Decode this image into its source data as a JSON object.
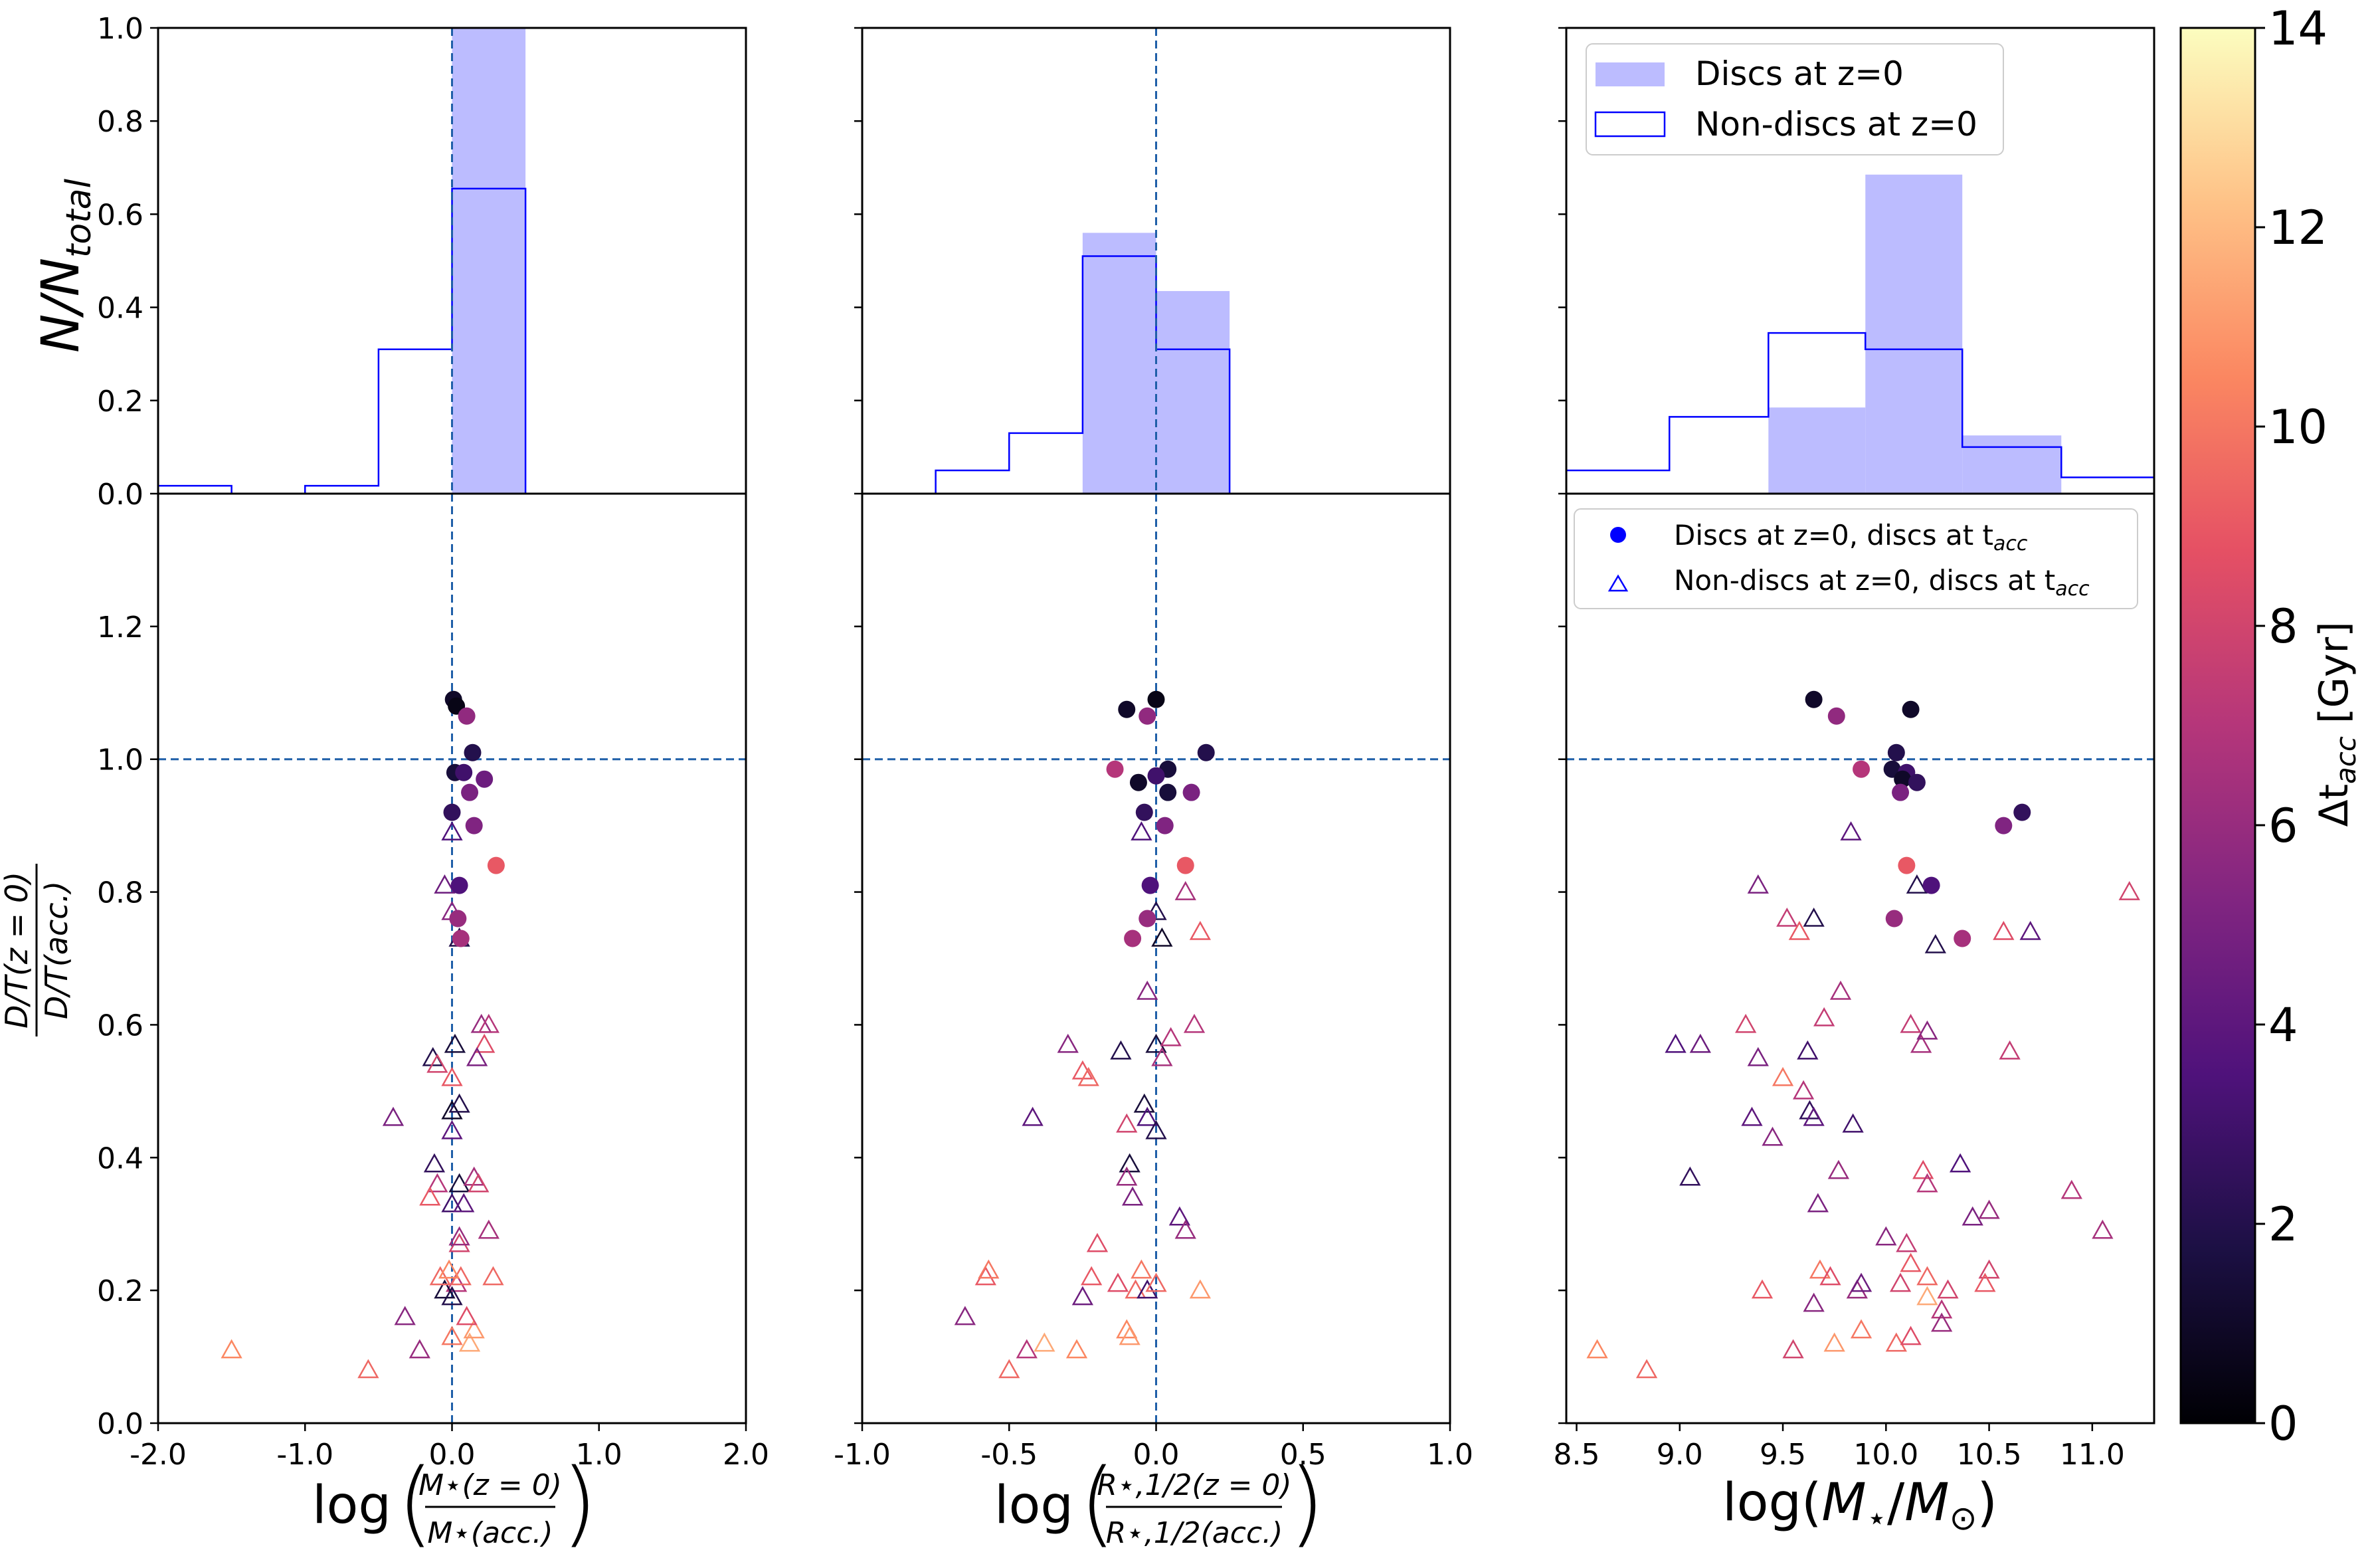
{
  "chart_data": {
    "type": "scatter",
    "panels": [
      {
        "id": "mass-ratio",
        "xlabel": "log(M⋆(z=0) / M⋆(acc.))",
        "xlim": [
          -2.0,
          2.0
        ],
        "xticks": [
          "-2.0",
          "-1.0",
          "0.0",
          "1.0",
          "2.0"
        ],
        "xtick_values": [
          -2.0,
          -1.0,
          0.0,
          1.0,
          2.0
        ],
        "hist_edges": [
          -2.0,
          -1.5,
          -1.0,
          -0.5,
          0.0,
          0.5
        ],
        "hist_discs": [
          0,
          0,
          0,
          0,
          1.0
        ],
        "hist_nondiscs": [
          0.017,
          0,
          0.017,
          0.31,
          0.655
        ],
        "vline": 0.0,
        "discs": [
          [
            0.01,
            1.09,
            1.0
          ],
          [
            0.03,
            1.08,
            0.5
          ],
          [
            0.1,
            1.065,
            5.8
          ],
          [
            0.14,
            1.01,
            2.0
          ],
          [
            0.02,
            0.98,
            1.5
          ],
          [
            0.08,
            0.98,
            3.0
          ],
          [
            0.22,
            0.97,
            4.5
          ],
          [
            0.12,
            0.95,
            5.0
          ],
          [
            0.0,
            0.92,
            2.5
          ],
          [
            0.15,
            0.9,
            5.2
          ],
          [
            0.3,
            0.84,
            9.0
          ],
          [
            0.05,
            0.81,
            3.5
          ],
          [
            0.04,
            0.76,
            6.0
          ],
          [
            0.06,
            0.73,
            6.5
          ]
        ],
        "nondiscs": [
          [
            -1.5,
            0.11,
            10.5
          ],
          [
            -0.57,
            0.08,
            9.5
          ],
          [
            -0.22,
            0.11,
            6.0
          ],
          [
            -0.32,
            0.16,
            5.5
          ],
          [
            -0.4,
            0.46,
            5.0
          ],
          [
            -0.13,
            0.55,
            2.0
          ],
          [
            -0.1,
            0.54,
            8.0
          ],
          [
            -0.12,
            0.39,
            2.5
          ],
          [
            0.0,
            0.89,
            3.5
          ],
          [
            -0.05,
            0.81,
            4.5
          ],
          [
            0.05,
            0.73,
            2.0
          ],
          [
            0.0,
            0.77,
            5.5
          ],
          [
            0.02,
            0.57,
            1.5
          ],
          [
            0.0,
            0.52,
            9.0
          ],
          [
            0.0,
            0.47,
            1.0
          ],
          [
            0.05,
            0.48,
            2.0
          ],
          [
            0.0,
            0.44,
            4.0
          ],
          [
            0.05,
            0.36,
            1.5
          ],
          [
            0.0,
            0.33,
            3.0
          ],
          [
            0.05,
            0.27,
            8.0
          ],
          [
            0.03,
            0.21,
            7.0
          ],
          [
            0.06,
            0.22,
            9.5
          ],
          [
            0.0,
            0.19,
            2.0
          ],
          [
            -0.05,
            0.2,
            1.5
          ],
          [
            0.0,
            0.13,
            10.0
          ],
          [
            0.12,
            0.12,
            11.5
          ],
          [
            0.15,
            0.14,
            11.0
          ],
          [
            0.2,
            0.6,
            6.0
          ],
          [
            0.25,
            0.6,
            7.0
          ],
          [
            0.22,
            0.57,
            8.5
          ],
          [
            0.17,
            0.55,
            5.0
          ],
          [
            0.15,
            0.37,
            6.5
          ],
          [
            0.18,
            0.36,
            8.0
          ],
          [
            0.25,
            0.29,
            6.5
          ],
          [
            0.28,
            0.22,
            9.5
          ],
          [
            0.08,
            0.33,
            4.0
          ],
          [
            -0.1,
            0.36,
            7.0
          ],
          [
            -0.15,
            0.34,
            9.0
          ],
          [
            -0.08,
            0.22,
            9.5
          ],
          [
            -0.02,
            0.23,
            10.5
          ],
          [
            0.1,
            0.16,
            8.5
          ],
          [
            0.05,
            0.28,
            6.0
          ]
        ]
      },
      {
        "id": "radius-ratio",
        "xlabel": "log(R⋆,1/2(z=0) / R⋆,1/2(acc.))",
        "xlim": [
          -1.0,
          1.0
        ],
        "xticks": [
          "-1.0",
          "-0.5",
          "0.0",
          "0.5",
          "1.0"
        ],
        "xtick_values": [
          -1.0,
          -0.5,
          0.0,
          0.5,
          1.0
        ],
        "hist_edges": [
          -0.75,
          -0.5,
          -0.25,
          0.0,
          0.25
        ],
        "hist_discs": [
          0,
          0,
          0.56,
          0.435
        ],
        "hist_nondiscs": [
          0.05,
          0.13,
          0.51,
          0.31
        ],
        "vline": 0.0,
        "discs": [
          [
            -0.1,
            1.075,
            1.0
          ],
          [
            0.0,
            1.09,
            0.5
          ],
          [
            -0.03,
            1.065,
            5.8
          ],
          [
            0.17,
            1.01,
            2.0
          ],
          [
            -0.14,
            0.985,
            7.0
          ],
          [
            0.04,
            0.985,
            1.5
          ],
          [
            0.0,
            0.975,
            3.0
          ],
          [
            -0.06,
            0.965,
            1.0
          ],
          [
            0.12,
            0.95,
            5.0
          ],
          [
            -0.04,
            0.92,
            2.5
          ],
          [
            0.03,
            0.9,
            5.2
          ],
          [
            0.1,
            0.84,
            9.0
          ],
          [
            -0.02,
            0.81,
            3.5
          ],
          [
            -0.03,
            0.76,
            6.0
          ],
          [
            -0.08,
            0.73,
            6.5
          ],
          [
            0.04,
            0.95,
            1.5
          ]
        ],
        "nondiscs": [
          [
            -0.65,
            0.16,
            5.5
          ],
          [
            -0.58,
            0.22,
            9.0
          ],
          [
            -0.57,
            0.23,
            10.0
          ],
          [
            -0.5,
            0.08,
            9.5
          ],
          [
            -0.44,
            0.11,
            7.0
          ],
          [
            -0.38,
            0.12,
            11.5
          ],
          [
            -0.42,
            0.46,
            4.0
          ],
          [
            -0.3,
            0.57,
            5.5
          ],
          [
            -0.25,
            0.53,
            9.0
          ],
          [
            -0.23,
            0.52,
            9.5
          ],
          [
            -0.27,
            0.11,
            10.5
          ],
          [
            -0.25,
            0.19,
            4.5
          ],
          [
            -0.2,
            0.27,
            8.5
          ],
          [
            -0.22,
            0.22,
            9.0
          ],
          [
            -0.13,
            0.21,
            8.5
          ],
          [
            -0.1,
            0.14,
            10.5
          ],
          [
            -0.09,
            0.13,
            11.0
          ],
          [
            -0.07,
            0.2,
            9.5
          ],
          [
            -0.05,
            0.23,
            10.0
          ],
          [
            -0.12,
            0.56,
            2.0
          ],
          [
            -0.1,
            0.45,
            8.0
          ],
          [
            -0.09,
            0.39,
            1.5
          ],
          [
            -0.1,
            0.37,
            6.0
          ],
          [
            -0.08,
            0.34,
            5.0
          ],
          [
            -0.04,
            0.48,
            1.5
          ],
          [
            -0.03,
            0.46,
            3.5
          ],
          [
            0.0,
            0.44,
            2.0
          ],
          [
            0.0,
            0.57,
            1.5
          ],
          [
            0.02,
            0.55,
            6.5
          ],
          [
            0.0,
            0.77,
            2.0
          ],
          [
            0.02,
            0.73,
            1.0
          ],
          [
            -0.03,
            0.65,
            5.5
          ],
          [
            -0.05,
            0.89,
            3.5
          ],
          [
            0.08,
            0.31,
            4.0
          ],
          [
            0.1,
            0.29,
            6.0
          ],
          [
            0.13,
            0.6,
            7.0
          ],
          [
            0.1,
            0.8,
            6.5
          ],
          [
            0.15,
            0.74,
            9.0
          ],
          [
            0.15,
            0.2,
            11.0
          ],
          [
            0.05,
            0.58,
            7.0
          ],
          [
            -0.03,
            0.2,
            3.0
          ],
          [
            0.0,
            0.21,
            9.5
          ]
        ]
      },
      {
        "id": "stellar-mass",
        "xlabel": "log(M⋆/M⊙)",
        "xlim": [
          8.45,
          11.3
        ],
        "xticks": [
          "8.5",
          "9.0",
          "9.5",
          "10.0",
          "10.5",
          "11.0"
        ],
        "xtick_values": [
          8.5,
          9.0,
          9.5,
          10.0,
          10.5,
          11.0
        ],
        "hist_edges": [
          8.0,
          8.95,
          9.43,
          9.9,
          10.37,
          10.85,
          11.32
        ],
        "hist_discs": [
          0,
          0,
          0.185,
          0.685,
          0.125,
          0
        ],
        "hist_nondiscs": [
          0.05,
          0.165,
          0.345,
          0.31,
          0.1,
          0.035
        ],
        "vline": null,
        "discs": [
          [
            9.65,
            1.09,
            1.0
          ],
          [
            9.76,
            1.065,
            5.8
          ],
          [
            10.12,
            1.075,
            1.0
          ],
          [
            10.05,
            1.01,
            2.0
          ],
          [
            9.88,
            0.985,
            7.0
          ],
          [
            10.03,
            0.985,
            1.5
          ],
          [
            10.1,
            0.98,
            3.0
          ],
          [
            10.08,
            0.97,
            1.0
          ],
          [
            10.15,
            0.965,
            2.5
          ],
          [
            10.07,
            0.95,
            5.0
          ],
          [
            10.66,
            0.92,
            2.5
          ],
          [
            10.57,
            0.9,
            5.2
          ],
          [
            10.1,
            0.84,
            9.0
          ],
          [
            10.22,
            0.81,
            3.5
          ],
          [
            10.04,
            0.76,
            6.0
          ],
          [
            10.37,
            0.73,
            6.5
          ]
        ],
        "nondiscs": [
          [
            8.6,
            0.11,
            10.5
          ],
          [
            8.84,
            0.08,
            9.5
          ],
          [
            8.98,
            0.57,
            3.5
          ],
          [
            9.05,
            0.37,
            2.5
          ],
          [
            9.1,
            0.57,
            4.5
          ],
          [
            9.32,
            0.6,
            8.0
          ],
          [
            9.35,
            0.46,
            4.0
          ],
          [
            9.38,
            0.55,
            5.0
          ],
          [
            9.38,
            0.81,
            5.0
          ],
          [
            9.4,
            0.2,
            9.0
          ],
          [
            9.45,
            0.43,
            5.5
          ],
          [
            9.52,
            0.76,
            7.5
          ],
          [
            9.55,
            0.11,
            8.0
          ],
          [
            9.58,
            0.74,
            9.0
          ],
          [
            9.5,
            0.52,
            10.0
          ],
          [
            9.6,
            0.5,
            7.0
          ],
          [
            9.62,
            0.56,
            3.0
          ],
          [
            9.63,
            0.47,
            2.5
          ],
          [
            9.65,
            0.76,
            2.0
          ],
          [
            9.65,
            0.46,
            4.0
          ],
          [
            9.65,
            0.18,
            5.5
          ],
          [
            9.67,
            0.33,
            5.0
          ],
          [
            9.68,
            0.23,
            10.0
          ],
          [
            9.7,
            0.61,
            7.5
          ],
          [
            9.73,
            0.22,
            8.5
          ],
          [
            9.75,
            0.12,
            11.0
          ],
          [
            9.77,
            0.38,
            6.0
          ],
          [
            9.78,
            0.65,
            6.5
          ],
          [
            9.83,
            0.89,
            4.0
          ],
          [
            9.84,
            0.45,
            3.0
          ],
          [
            9.86,
            0.2,
            6.0
          ],
          [
            9.88,
            0.21,
            4.5
          ],
          [
            9.88,
            0.14,
            10.0
          ],
          [
            10.05,
            0.12,
            9.5
          ],
          [
            10.07,
            0.21,
            8.0
          ],
          [
            10.1,
            0.27,
            7.5
          ],
          [
            10.12,
            0.6,
            7.5
          ],
          [
            10.12,
            0.13,
            8.5
          ],
          [
            10.15,
            0.81,
            2.0
          ],
          [
            10.17,
            0.57,
            6.5
          ],
          [
            10.2,
            0.59,
            5.5
          ],
          [
            10.18,
            0.38,
            8.5
          ],
          [
            10.2,
            0.36,
            7.0
          ],
          [
            10.2,
            0.22,
            9.5
          ],
          [
            10.2,
            0.19,
            11.5
          ],
          [
            10.24,
            0.72,
            2.0
          ],
          [
            10.27,
            0.17,
            7.0
          ],
          [
            10.27,
            0.15,
            6.0
          ],
          [
            10.3,
            0.2,
            8.0
          ],
          [
            10.36,
            0.39,
            3.5
          ],
          [
            10.42,
            0.31,
            5.0
          ],
          [
            10.5,
            0.32,
            6.0
          ],
          [
            10.5,
            0.23,
            8.0
          ],
          [
            10.48,
            0.21,
            9.0
          ],
          [
            10.57,
            0.74,
            8.5
          ],
          [
            10.6,
            0.56,
            7.5
          ],
          [
            10.7,
            0.74,
            4.0
          ],
          [
            10.9,
            0.35,
            7.0
          ],
          [
            11.05,
            0.29,
            6.5
          ],
          [
            11.18,
            0.8,
            8.0
          ],
          [
            10.0,
            0.28,
            5.5
          ],
          [
            10.12,
            0.24,
            9.0
          ]
        ]
      }
    ],
    "hist_ylabel": "N/N",
    "hist_ylabel_sub": "total",
    "hist_ylim": [
      0.0,
      1.0
    ],
    "hist_yticks": [
      "0.0",
      "0.2",
      "0.4",
      "0.6",
      "0.8",
      "1.0"
    ],
    "scatter_ylabel_num": "D/T(z = 0)",
    "scatter_ylabel_den": "D/T(acc.)",
    "scatter_ylim": [
      0.0,
      1.4
    ],
    "scatter_yticks": [
      "0.0",
      "0.2",
      "0.4",
      "0.6",
      "0.8",
      "1.0",
      "1.2"
    ],
    "hline": 1.0,
    "colorbar": {
      "label": "Δt",
      "label_sub": "acc",
      "label_unit": "[Gyr]",
      "range": [
        0,
        14
      ],
      "ticks": [
        "0",
        "2",
        "4",
        "6",
        "8",
        "10",
        "12",
        "14"
      ],
      "colormap": "magma"
    },
    "legend_hist": {
      "discs_label": "Discs at z=0",
      "nondiscs_label": "Non-discs at z=0",
      "placement": "top-right"
    },
    "legend_scatter": {
      "discs_label": "Discs at z=0, discs at t",
      "nondiscs_label": "Non-discs at z=0, discs at t",
      "sub": "acc",
      "placement": "top-right"
    },
    "colors": {
      "disc_fill": "#bcbcff",
      "nondisc_edge": "#0000ff",
      "guide_line": "#1f5fa8",
      "legend_marker": "#0000ff"
    }
  }
}
